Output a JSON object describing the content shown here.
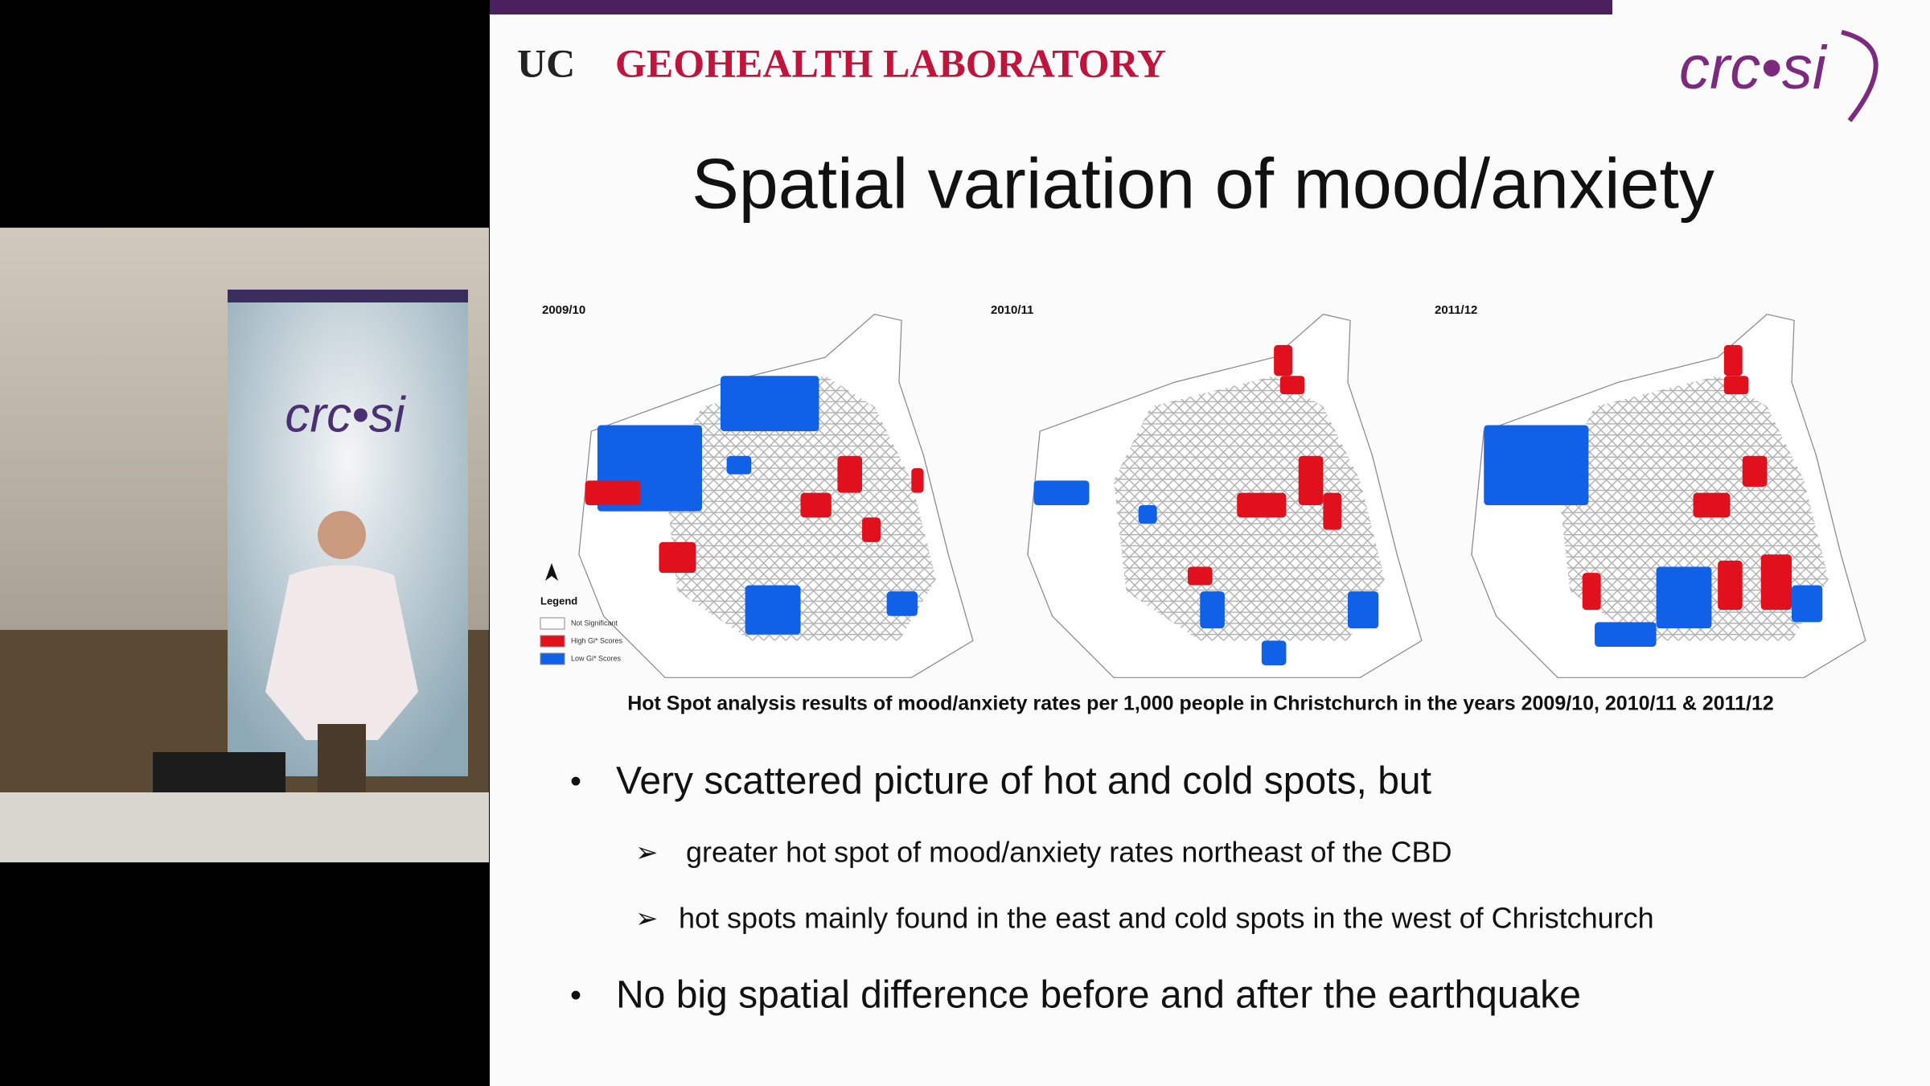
{
  "header": {
    "logo_uc": "UC",
    "lab": "GEOHEALTH LABORATORY",
    "logo_crcsi": "crc•si"
  },
  "banner": {
    "logo": "crc•si"
  },
  "slide": {
    "title": "Spatial variation of mood/anxiety",
    "maps": [
      {
        "label": "2009/10"
      },
      {
        "label": "2010/11"
      },
      {
        "label": "2011/12"
      }
    ],
    "legend": {
      "title": "Legend",
      "items": [
        "Not Significant",
        "High Gi* Scores",
        "Low Gi* Scores"
      ]
    },
    "caption": "Hot Spot analysis  results of mood/anxiety  rates per 1,000 people in Christchurch in the years 2009/10, 2010/11 & 2011/12",
    "bullets": [
      {
        "text": "Very scattered picture of hot and cold spots, but",
        "sub": [
          "greater hot spot of mood/anxiety rates northeast of the CBD",
          "hot spots mainly found in the east and cold spots in the west of Christchurch"
        ]
      },
      {
        "text": "No big spatial difference before and after the earthquake"
      }
    ]
  }
}
